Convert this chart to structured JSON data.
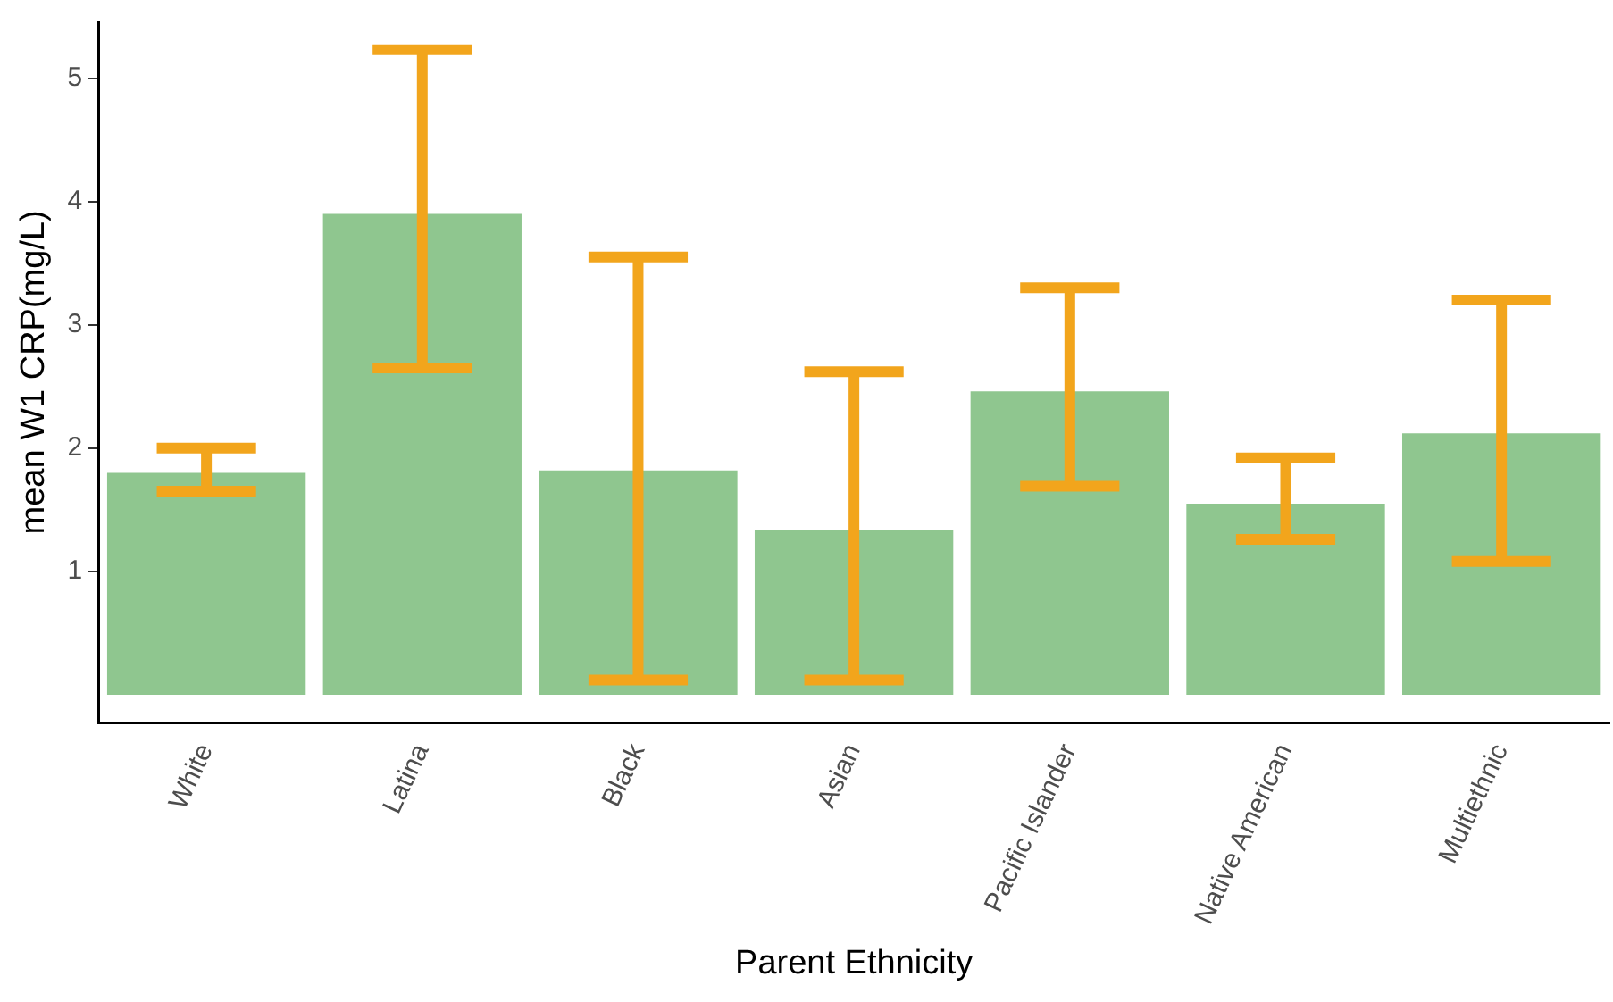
{
  "chart_data": {
    "type": "bar",
    "xlabel": "Parent Ethnicity",
    "ylabel": "mean W1 CRP(mg/L)",
    "categories": [
      "White",
      "Latina",
      "Black",
      "Asian",
      "Pacific Islander",
      "Native American",
      "Multiethnic"
    ],
    "values": [
      1.8,
      3.9,
      1.82,
      1.34,
      2.46,
      1.55,
      2.12
    ],
    "color": "#8fc68f",
    "errors": [
      [
        1.65,
        2.0
      ],
      [
        2.65,
        5.23
      ],
      [
        0.12,
        3.55
      ],
      [
        0.12,
        2.62
      ],
      [
        1.69,
        3.3
      ],
      [
        1.26,
        1.92
      ],
      [
        1.08,
        3.2
      ]
    ],
    "ylim": [
      -0.23,
      5.46
    ],
    "yticks": [
      1,
      2,
      3,
      4,
      5
    ],
    "grid": false,
    "legend": false
  }
}
